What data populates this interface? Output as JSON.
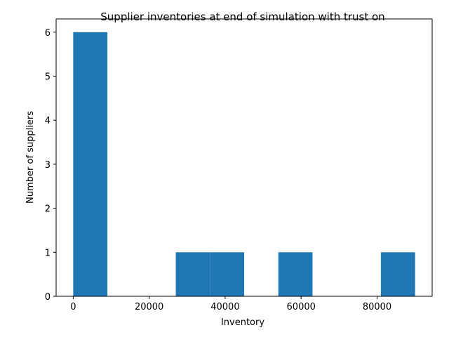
{
  "chart_data": {
    "type": "bar",
    "title": "Supplier inventories at end of simulation with trust on",
    "xlabel": "Inventory",
    "ylabel": "Number of suppliers",
    "bins": [
      {
        "x0": 0,
        "x1": 9000,
        "count": 6
      },
      {
        "x0": 9000,
        "x1": 18000,
        "count": 0
      },
      {
        "x0": 18000,
        "x1": 27000,
        "count": 0
      },
      {
        "x0": 27000,
        "x1": 36000,
        "count": 1
      },
      {
        "x0": 36000,
        "x1": 45000,
        "count": 1
      },
      {
        "x0": 45000,
        "x1": 54000,
        "count": 0
      },
      {
        "x0": 54000,
        "x1": 63000,
        "count": 1
      },
      {
        "x0": 63000,
        "x1": 72000,
        "count": 0
      },
      {
        "x0": 72000,
        "x1": 81000,
        "count": 0
      },
      {
        "x0": 81000,
        "x1": 90000,
        "count": 1
      }
    ],
    "xlim": [
      -4500,
      94500
    ],
    "ylim": [
      0,
      6.3
    ],
    "xticks": [
      0,
      20000,
      40000,
      60000,
      80000
    ],
    "yticks": [
      0,
      1,
      2,
      3,
      4,
      5,
      6
    ],
    "bar_color": "#1f77b4",
    "grid": false,
    "legend": "none"
  }
}
